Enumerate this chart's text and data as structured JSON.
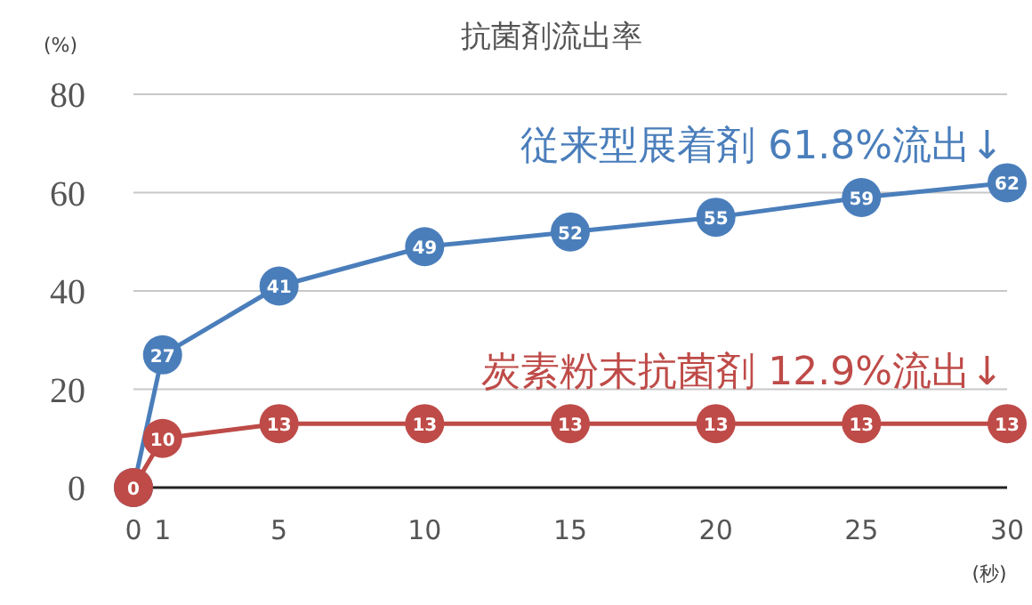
{
  "chart_data": {
    "type": "line",
    "title": "抗菌剤流出率",
    "xlabel": "(秒)",
    "ylabel": "(%)",
    "x": [
      0,
      1,
      5,
      10,
      15,
      20,
      25,
      30
    ],
    "series": [
      {
        "name": "従来型展着剤 61.8%流出↓",
        "color": "#4a7ebb",
        "values": [
          0,
          27,
          41,
          49,
          52,
          55,
          59,
          62
        ],
        "value_labels": [
          null,
          "27",
          "41",
          "49",
          "52",
          "55",
          "59",
          "62"
        ]
      },
      {
        "name": "炭素粉末抗菌剤 12.9%流出↓",
        "color": "#be4b48",
        "values": [
          0,
          10,
          13,
          13,
          13,
          13,
          13,
          13
        ],
        "value_labels": [
          "0",
          "10",
          "13",
          "13",
          "13",
          "13",
          "13",
          "13"
        ]
      }
    ],
    "xlim": [
      0,
      30
    ],
    "xticks": [
      0,
      1,
      5,
      10,
      15,
      20,
      25,
      30
    ],
    "ylim": [
      0,
      80
    ],
    "yticks": [
      0,
      20,
      40,
      60,
      80
    ],
    "grid": "y",
    "legend": false,
    "marker": "circle",
    "line_style": "solid"
  }
}
